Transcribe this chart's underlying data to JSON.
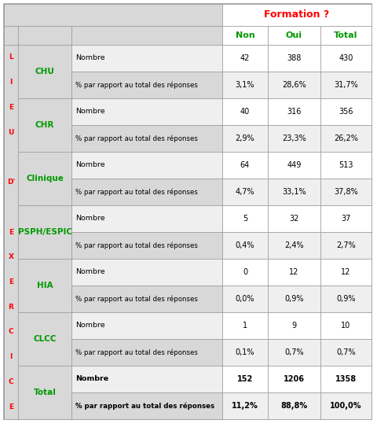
{
  "header_formation": "Formation ?",
  "col_headers": [
    "Non",
    "Oui",
    "Total"
  ],
  "left_label_chars": [
    "L",
    "I",
    "E",
    "U",
    "",
    "D'",
    "",
    "E",
    "X",
    "E",
    "R",
    "C",
    "I",
    "C",
    "E"
  ],
  "rows": [
    {
      "category": "CHU",
      "row1_label": "Nombre",
      "row1_values": [
        "42",
        "388",
        "430"
      ],
      "row2_label": "% par rapport au total des réponses",
      "row2_values": [
        "3,1%",
        "28,6%",
        "31,7%"
      ],
      "bold": false
    },
    {
      "category": "CHR",
      "row1_label": "Nombre",
      "row1_values": [
        "40",
        "316",
        "356"
      ],
      "row2_label": "% par rapport au total des réponses",
      "row2_values": [
        "2,9%",
        "23,3%",
        "26,2%"
      ],
      "bold": false
    },
    {
      "category": "Clinique",
      "row1_label": "Nombre",
      "row1_values": [
        "64",
        "449",
        "513"
      ],
      "row2_label": "% par rapport au total des réponses",
      "row2_values": [
        "4,7%",
        "33,1%",
        "37,8%"
      ],
      "bold": false
    },
    {
      "category": "PSPH/ESPIC",
      "row1_label": "Nombre",
      "row1_values": [
        "5",
        "32",
        "37"
      ],
      "row2_label": "% par rapport au total des réponses",
      "row2_values": [
        "0,4%",
        "2,4%",
        "2,7%"
      ],
      "bold": false
    },
    {
      "category": "HIA",
      "row1_label": "Nombre",
      "row1_values": [
        "0",
        "12",
        "12"
      ],
      "row2_label": "% par rapport au total des réponses",
      "row2_values": [
        "0,0%",
        "0,9%",
        "0,9%"
      ],
      "bold": false
    },
    {
      "category": "CLCC",
      "row1_label": "Nombre",
      "row1_values": [
        "1",
        "9",
        "10"
      ],
      "row2_label": "% par rapport au total des réponses",
      "row2_values": [
        "0,1%",
        "0,7%",
        "0,7%"
      ],
      "bold": false
    },
    {
      "category": "Total",
      "row1_label": "Nombre",
      "row1_values": [
        "152",
        "1206",
        "1358"
      ],
      "row2_label": "% par rapport au total des réponses",
      "row2_values": [
        "11,2%",
        "88,8%",
        "100,0%"
      ],
      "bold": true
    }
  ],
  "color_red": "#FF0000",
  "color_green": "#009900",
  "color_grey_bg": "#D8D8D8",
  "color_white": "#FFFFFF",
  "color_light_grey": "#EFEFEF",
  "color_border": "#999999"
}
